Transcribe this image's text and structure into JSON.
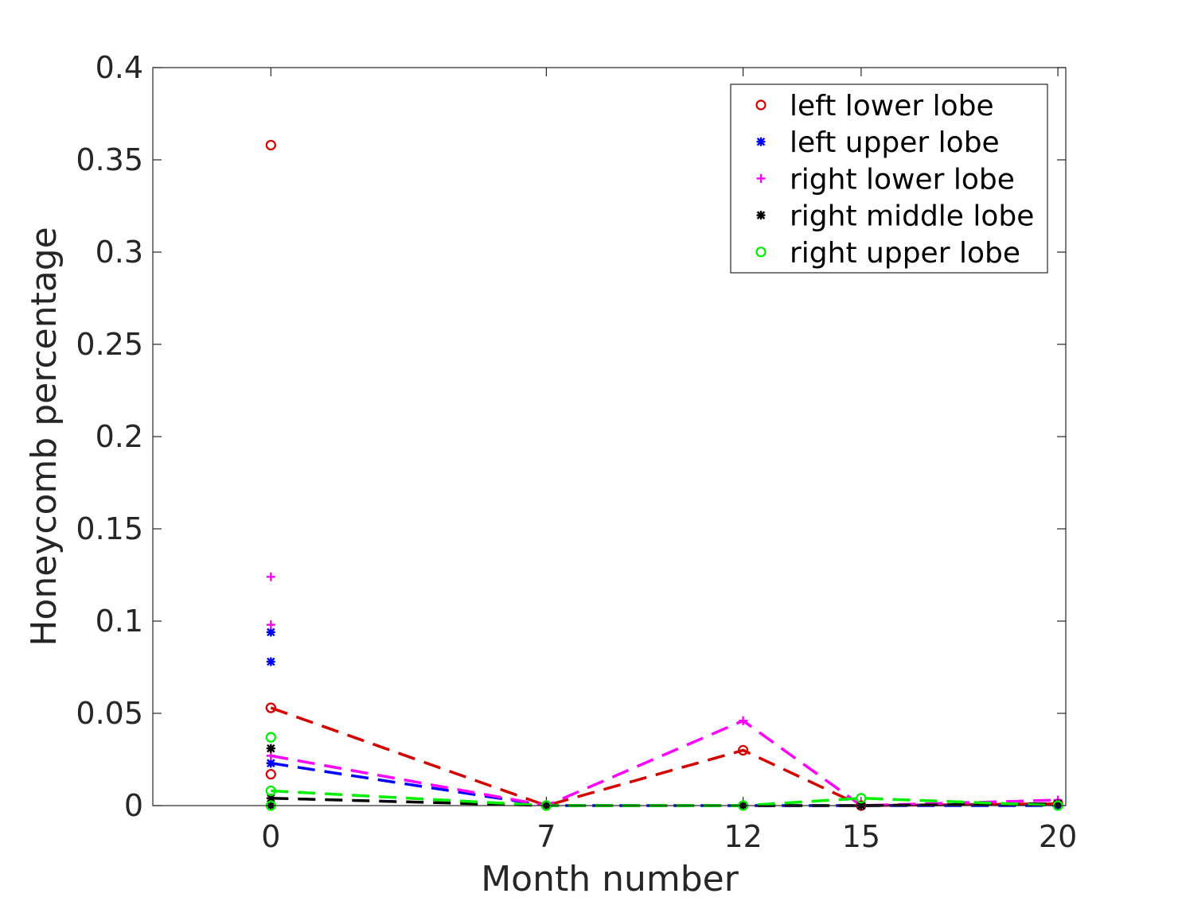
{
  "chart_data": {
    "type": "scatter",
    "title": "",
    "xlabel": "Month number",
    "ylabel": "Honeycomb percentage",
    "xlim": [
      -3,
      20.2
    ],
    "ylim": [
      0,
      0.4
    ],
    "xticks": [
      0,
      7,
      12,
      15,
      20
    ],
    "xtick_labels": [
      "0",
      "7",
      "12",
      "15",
      "20"
    ],
    "yticks": [
      0,
      0.05,
      0.1,
      0.15,
      0.2,
      0.25,
      0.3,
      0.35,
      0.4
    ],
    "ytick_labels": [
      "0",
      "0.05",
      "0.1",
      "0.15",
      "0.2",
      "0.25",
      "0.3",
      "0.35",
      "0.4"
    ],
    "grid": false,
    "legend_position": "top-right",
    "series": [
      {
        "name": "left lower lobe",
        "color": "#d40000",
        "marker": "circle",
        "points": [
          [
            0,
            0.358
          ],
          [
            0,
            0.053
          ],
          [
            0,
            0.017
          ]
        ],
        "line": [
          [
            0,
            0.053
          ],
          [
            7,
            0.0
          ],
          [
            12,
            0.03
          ],
          [
            15,
            0.0
          ],
          [
            20,
            0.001
          ]
        ]
      },
      {
        "name": "left upper lobe",
        "color": "#0000ff",
        "marker": "asterisk",
        "points": [
          [
            0,
            0.094
          ],
          [
            0,
            0.078
          ],
          [
            0,
            0.023
          ]
        ],
        "line": [
          [
            0,
            0.023
          ],
          [
            7,
            0.0
          ],
          [
            12,
            0.0
          ],
          [
            15,
            0.0
          ],
          [
            20,
            0.0
          ]
        ]
      },
      {
        "name": "right lower lobe",
        "color": "#ff00ff",
        "marker": "plus",
        "points": [
          [
            0,
            0.124
          ],
          [
            0,
            0.098
          ],
          [
            0,
            0.027
          ]
        ],
        "line": [
          [
            0,
            0.027
          ],
          [
            7,
            0.0
          ],
          [
            12,
            0.046
          ],
          [
            15,
            0.0
          ],
          [
            20,
            0.003
          ]
        ]
      },
      {
        "name": "right middle lobe",
        "color": "#000000",
        "marker": "asterisk",
        "points": [
          [
            0,
            0.031
          ],
          [
            0,
            0.0
          ]
        ],
        "line": [
          [
            0,
            0.004
          ],
          [
            7,
            0.0
          ],
          [
            12,
            0.0
          ],
          [
            15,
            0.0
          ],
          [
            20,
            0.001
          ]
        ]
      },
      {
        "name": "right upper lobe",
        "color": "#00ee00",
        "marker": "circle",
        "points": [
          [
            0,
            0.037
          ],
          [
            0,
            0.0
          ]
        ],
        "line": [
          [
            0,
            0.008
          ],
          [
            7,
            0.0
          ],
          [
            12,
            0.0
          ],
          [
            15,
            0.004
          ],
          [
            20,
            0.0
          ]
        ]
      }
    ]
  }
}
